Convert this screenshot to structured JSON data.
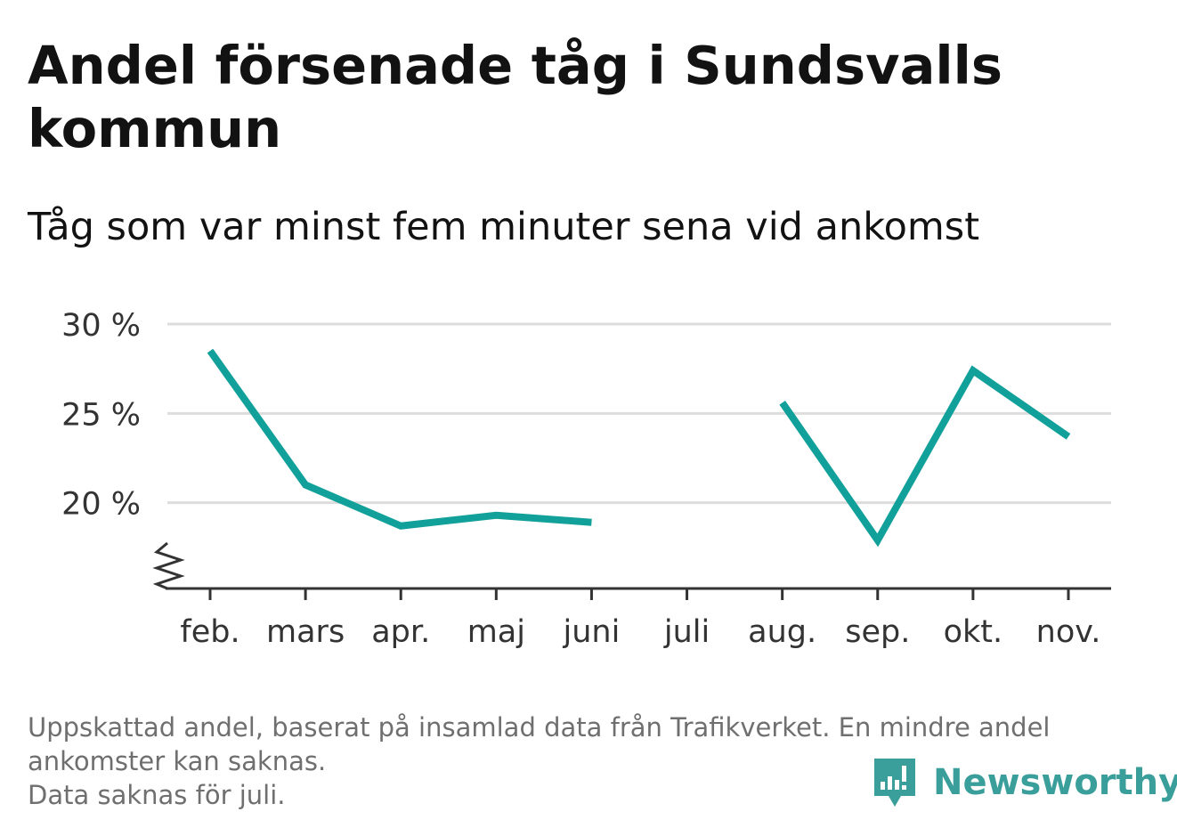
{
  "title": "Andel försenade tåg i Sundsvalls kommun",
  "subtitle": "Tåg som var minst fem minuter sena vid ankomst",
  "footnote": {
    "line1": "Uppskattad andel, baserat på insamlad data från Trafikverket. En mindre andel ankomster kan saknas.",
    "line2": "Data saknas för juli."
  },
  "brand": {
    "name": "Newsworthy",
    "icon": "newsworthy-logo-icon",
    "color": "#3a9e9a"
  },
  "chart_data": {
    "type": "line",
    "categories": [
      "feb.",
      "mars",
      "apr.",
      "maj",
      "juni",
      "juli",
      "aug.",
      "sep.",
      "okt.",
      "nov."
    ],
    "series": [
      {
        "values": [
          28.5,
          21.0,
          18.7,
          19.3,
          18.9,
          null,
          25.6,
          17.9,
          27.4,
          23.7
        ],
        "color": "#12a19a"
      }
    ],
    "yticks": [
      {
        "value": 20,
        "label": "20 %"
      },
      {
        "value": 25,
        "label": "25 %"
      },
      {
        "value": 30,
        "label": "30 %"
      }
    ],
    "ylim": [
      15.2,
      30
    ],
    "y_axis_break": true,
    "grid": true,
    "gridColor": "#dddddd",
    "axisColor": "#333333",
    "xlabel": "",
    "ylabel": ""
  }
}
